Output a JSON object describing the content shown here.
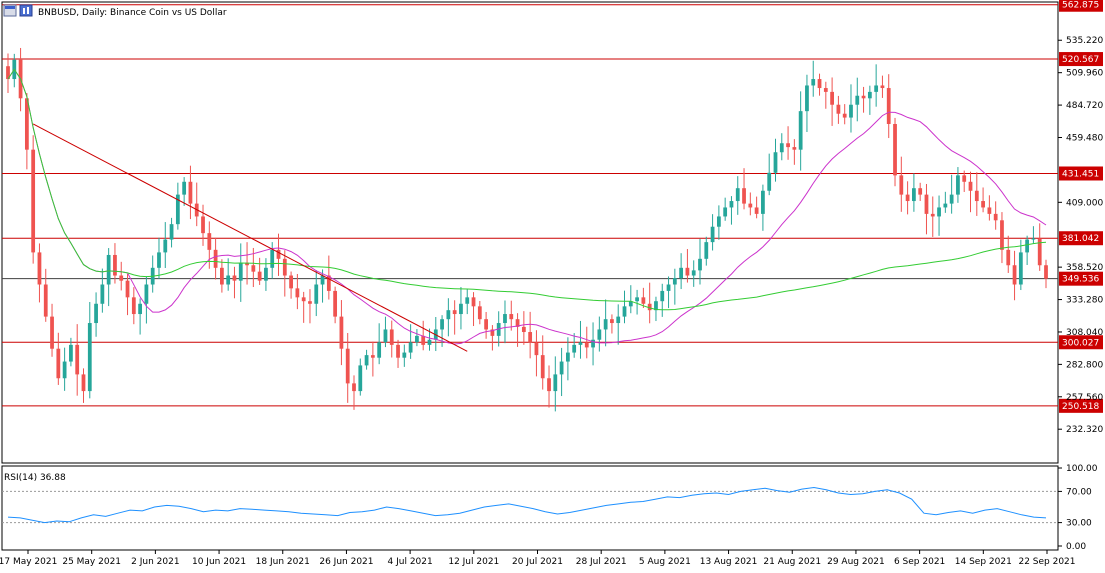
{
  "chart_data": {
    "type": "candlestick",
    "symbol": "BNBUSD",
    "title": "BNBUSD, Daily:  Binance Coin vs US Dollar",
    "price_ticks": [
      "535.220",
      "509.960",
      "484.720",
      "459.480",
      "409.000",
      "358.520",
      "333.280",
      "308.040",
      "282.800",
      "257.560",
      "232.320"
    ],
    "price_range": [
      206,
      565
    ],
    "horizontal_levels": [
      {
        "label": "562.875",
        "value": 562.875
      },
      {
        "label": "520.567",
        "value": 520.567
      },
      {
        "label": "431.451",
        "value": 431.451
      },
      {
        "label": "381.042",
        "value": 381.042
      },
      {
        "label": "300.027",
        "value": 300.027
      },
      {
        "label": "250.518",
        "value": 250.518
      }
    ],
    "current_price": {
      "label": "349.536",
      "value": 349.536
    },
    "dates": [
      "17 May 2021",
      "25 May 2021",
      "2 Jun 2021",
      "10 Jun 2021",
      "18 Jun 2021",
      "26 Jun 2021",
      "4 Jul 2021",
      "12 Jul 2021",
      "20 Jul 2021",
      "28 Jul 2021",
      "5 Aug 2021",
      "13 Aug 2021",
      "21 Aug 2021",
      "29 Aug 2021",
      "6 Sep 2021",
      "14 Sep 2021",
      "22 Sep 2021"
    ],
    "trendline": {
      "from": {
        "bar": 4,
        "price": 470
      },
      "to": {
        "bar": 73,
        "price": 293
      }
    },
    "series_close": [
      505,
      520,
      490,
      450,
      370,
      345,
      320,
      295,
      272,
      285,
      298,
      275,
      262,
      315,
      330,
      345,
      368,
      352,
      348,
      335,
      322,
      330,
      345,
      358,
      370,
      380,
      392,
      415,
      425,
      408,
      398,
      385,
      372,
      358,
      345,
      352,
      348,
      362,
      360,
      355,
      348,
      358,
      372,
      365,
      352,
      342,
      335,
      332,
      330,
      345,
      352,
      340,
      320,
      295,
      268,
      262,
      282,
      290,
      288,
      300,
      310,
      298,
      288,
      292,
      300,
      305,
      298,
      302,
      310,
      318,
      325,
      322,
      330,
      335,
      328,
      318,
      310,
      305,
      315,
      322,
      318,
      312,
      308,
      300,
      290,
      272,
      262,
      275,
      285,
      292,
      298,
      300,
      296,
      302,
      310,
      318,
      315,
      320,
      328,
      332,
      335,
      330,
      325,
      332,
      340,
      345,
      350,
      358,
      352,
      356,
      365,
      378,
      390,
      398,
      405,
      410,
      420,
      408,
      405,
      400,
      418,
      432,
      448,
      455,
      452,
      450,
      480,
      500,
      505,
      498,
      495,
      485,
      478,
      475,
      485,
      492,
      490,
      495,
      500,
      498,
      470,
      430,
      415,
      410,
      420,
      415,
      400,
      398,
      405,
      408,
      415,
      430,
      425,
      418,
      410,
      405,
      400,
      395,
      372,
      360,
      345,
      370,
      380,
      381,
      360,
      349.5
    ],
    "rsi": {
      "label": "RSI(14) 36.88",
      "period": 14,
      "value": 36.88,
      "ticks": [
        "100.00",
        "70.00",
        "30.00",
        "0.00"
      ],
      "levels": [
        70,
        30
      ],
      "values": [
        37,
        36,
        33,
        30,
        32,
        31,
        36,
        40,
        38,
        42,
        46,
        45,
        50,
        52,
        51,
        48,
        44,
        46,
        45,
        48,
        47,
        46,
        45,
        44,
        42,
        41,
        40,
        39,
        43,
        44,
        46,
        50,
        48,
        45,
        42,
        39,
        40,
        42,
        46,
        50,
        52,
        54,
        51,
        48,
        44,
        41,
        43,
        46,
        49,
        52,
        54,
        56,
        57,
        60,
        63,
        62,
        65,
        67,
        68,
        66,
        70,
        72,
        74,
        71,
        69,
        73,
        75,
        72,
        68,
        66,
        67,
        70,
        72,
        68,
        60,
        42,
        40,
        43,
        45,
        42,
        46,
        48,
        44,
        40,
        37,
        36
      ]
    }
  }
}
